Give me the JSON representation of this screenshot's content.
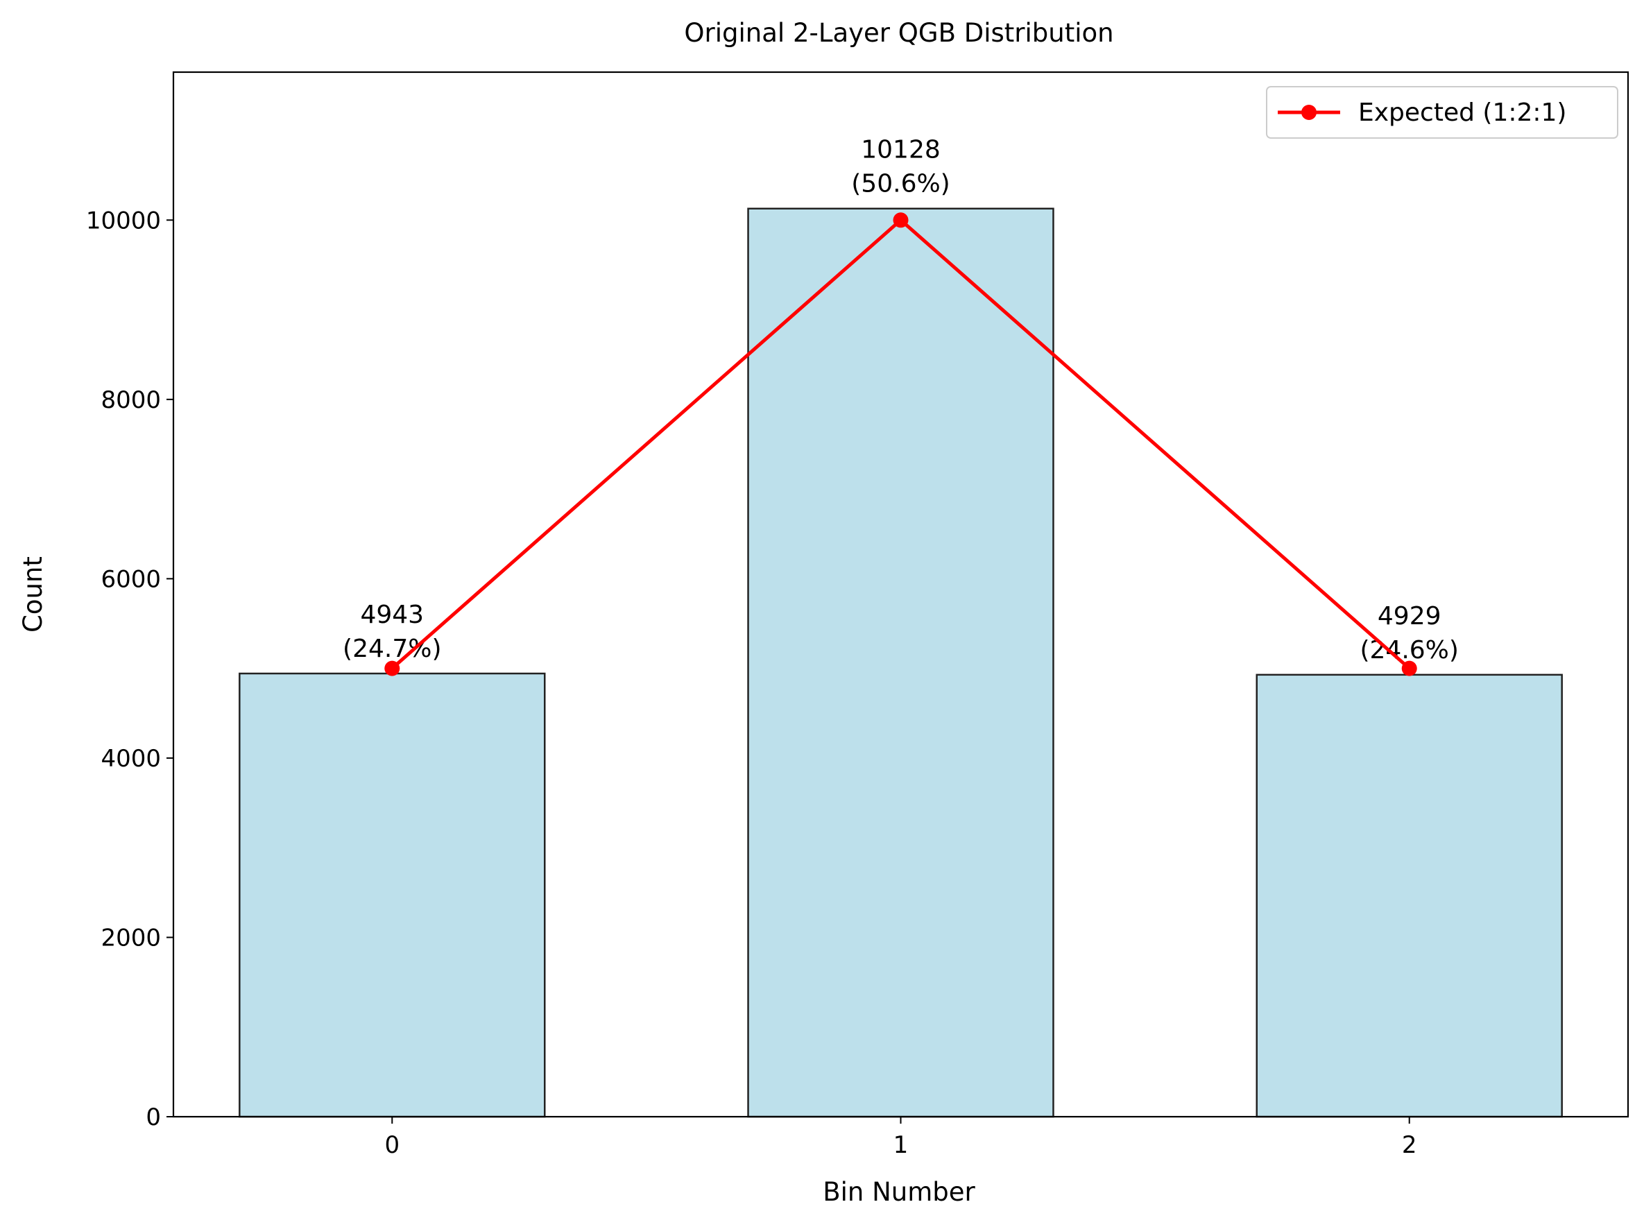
{
  "chart_data": {
    "type": "bar",
    "title": "Original 2-Layer QGB Distribution",
    "xlabel": "Bin Number",
    "ylabel": "Count",
    "categories": [
      "0",
      "1",
      "2"
    ],
    "values": [
      4943,
      10128,
      4929
    ],
    "bar_labels": [
      [
        "4943",
        "(24.7%)"
      ],
      [
        "10128",
        "(50.6%)"
      ],
      [
        "4929",
        "(24.6%)"
      ]
    ],
    "bar_color": "#add8e6",
    "bar_edge_color": "#222222",
    "series": [
      {
        "name": "Expected (1:2:1)",
        "type": "line",
        "values": [
          5000,
          10000,
          5000
        ],
        "color": "#ff0000",
        "marker": "circle"
      }
    ],
    "yticks": [
      0,
      2000,
      4000,
      6000,
      8000,
      10000
    ],
    "ytick_labels": [
      "0",
      "2000",
      "4000",
      "6000",
      "8000",
      "10000"
    ],
    "ylim": [
      0,
      11650
    ],
    "xlim": [
      -0.43,
      2.43
    ],
    "grid": false,
    "legend_position": "top-right"
  }
}
